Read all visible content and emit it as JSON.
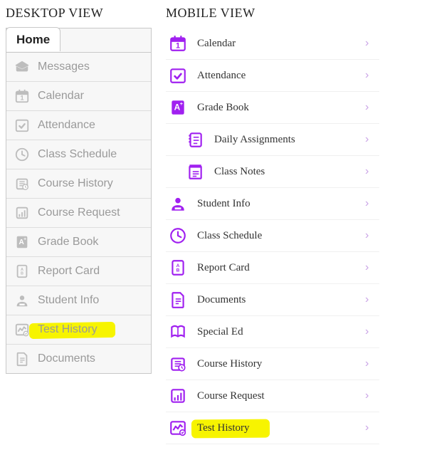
{
  "colors": {
    "desktop_icon": "#bdbdbd",
    "desktop_text": "#9a9a9a",
    "desktop_border": "#c8c8c8",
    "desktop_bg": "#f7f7f7",
    "mobile_accent": "#a020f0",
    "mobile_text": "#333333",
    "chevron": "#c9a3e6",
    "highlight": "#f7f400"
  },
  "headings": {
    "desktop": "DESKTOP VIEW",
    "mobile": "MOBILE VIEW"
  },
  "desktop": {
    "tab_label": "Home",
    "items": [
      {
        "label": "Messages",
        "icon": "messages-icon",
        "highlight": false
      },
      {
        "label": "Calendar",
        "icon": "calendar-icon",
        "highlight": false
      },
      {
        "label": "Attendance",
        "icon": "attendance-icon",
        "highlight": false
      },
      {
        "label": "Class Schedule",
        "icon": "schedule-icon",
        "highlight": false
      },
      {
        "label": "Course History",
        "icon": "course-history-icon",
        "highlight": false
      },
      {
        "label": "Course Request",
        "icon": "course-request-icon",
        "highlight": false
      },
      {
        "label": "Grade Book",
        "icon": "grade-book-icon",
        "highlight": false
      },
      {
        "label": "Report Card",
        "icon": "report-card-icon",
        "highlight": false
      },
      {
        "label": "Student Info",
        "icon": "student-info-icon",
        "highlight": false
      },
      {
        "label": "Test History",
        "icon": "test-history-icon",
        "highlight": true
      },
      {
        "label": "Documents",
        "icon": "documents-icon",
        "highlight": false
      }
    ]
  },
  "mobile": {
    "items": [
      {
        "label": "Calendar",
        "icon": "calendar-icon",
        "indent": false,
        "highlight": false
      },
      {
        "label": "Attendance",
        "icon": "attendance-icon",
        "indent": false,
        "highlight": false
      },
      {
        "label": "Grade Book",
        "icon": "grade-book-icon",
        "indent": false,
        "highlight": false
      },
      {
        "label": "Daily Assignments",
        "icon": "assignments-icon",
        "indent": true,
        "highlight": false
      },
      {
        "label": "Class Notes",
        "icon": "class-notes-icon",
        "indent": true,
        "highlight": false
      },
      {
        "label": "Student Info",
        "icon": "student-info-icon",
        "indent": false,
        "highlight": false
      },
      {
        "label": "Class Schedule",
        "icon": "schedule-icon",
        "indent": false,
        "highlight": false
      },
      {
        "label": "Report Card",
        "icon": "report-card-icon",
        "indent": false,
        "highlight": false
      },
      {
        "label": "Documents",
        "icon": "documents-icon",
        "indent": false,
        "highlight": false
      },
      {
        "label": "Special Ed",
        "icon": "special-ed-icon",
        "indent": false,
        "highlight": false
      },
      {
        "label": "Course History",
        "icon": "course-history-icon",
        "indent": false,
        "highlight": false
      },
      {
        "label": "Course Request",
        "icon": "course-request-icon",
        "indent": false,
        "highlight": false
      },
      {
        "label": "Test History",
        "icon": "test-history-icon",
        "indent": false,
        "highlight": true
      }
    ]
  }
}
